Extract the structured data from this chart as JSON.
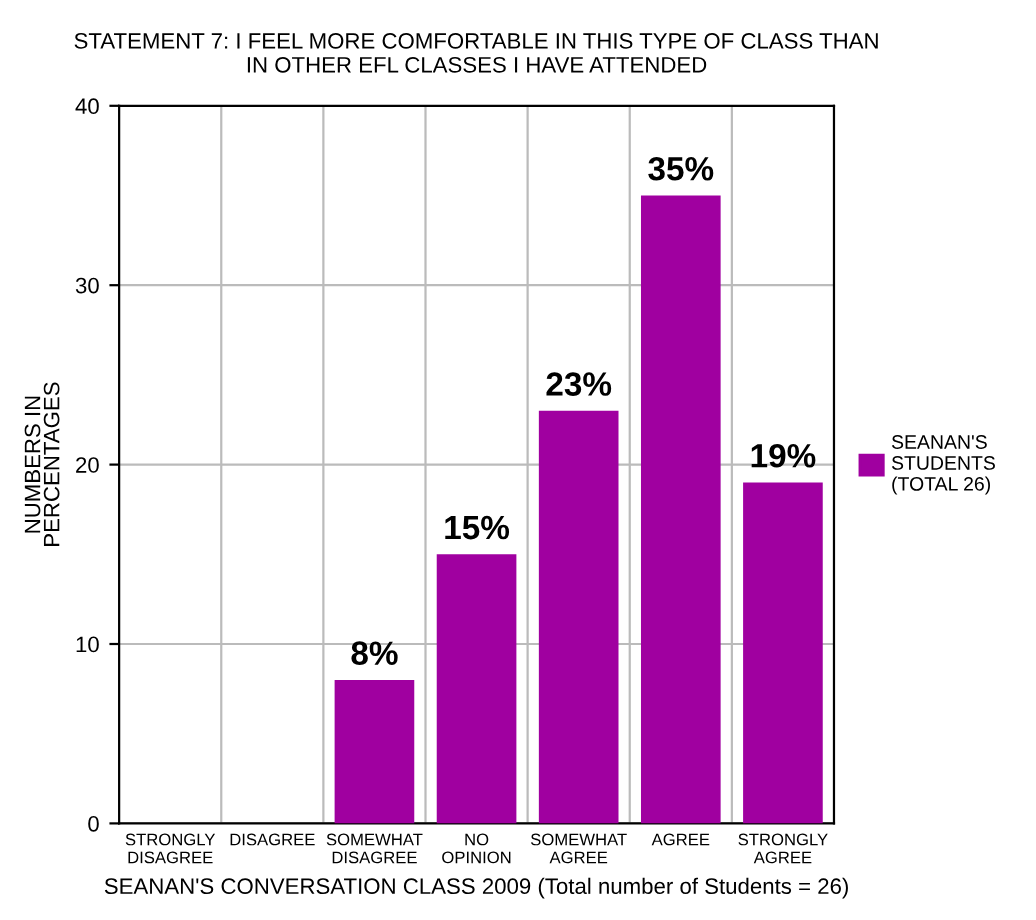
{
  "chart_data": {
    "type": "bar",
    "title": "STATEMENT 7: I FEEL MORE COMFORTABLE IN THIS TYPE OF CLASS THAN\nIN OTHER EFL CLASSES I HAVE ATTENDED",
    "xlabel": "SEANAN'S CONVERSATION CLASS 2009 (Total number of Students = 26)",
    "ylabel": "NUMBERS IN\nPERCENTAGES",
    "categories": [
      "STRONGLY\nDISAGREE",
      "DISAGREE",
      "SOMEWHAT\nDISAGREE",
      "NO\nOPINION",
      "SOMEWHAT\nAGREE",
      "AGREE",
      "STRONGLY\nAGREE"
    ],
    "series": [
      {
        "name": "SEANAN'S\nSTUDENTS\n(TOTAL 26)",
        "color": "#a000a0",
        "values": [
          0,
          0,
          8,
          15,
          23,
          35,
          19
        ],
        "value_labels": [
          null,
          null,
          "8%",
          "15%",
          "23%",
          "35%",
          "19%"
        ]
      }
    ],
    "ylim": [
      0,
      40
    ],
    "yticks": [
      0,
      10,
      20,
      30,
      40
    ],
    "grid": true,
    "legend": "right"
  }
}
